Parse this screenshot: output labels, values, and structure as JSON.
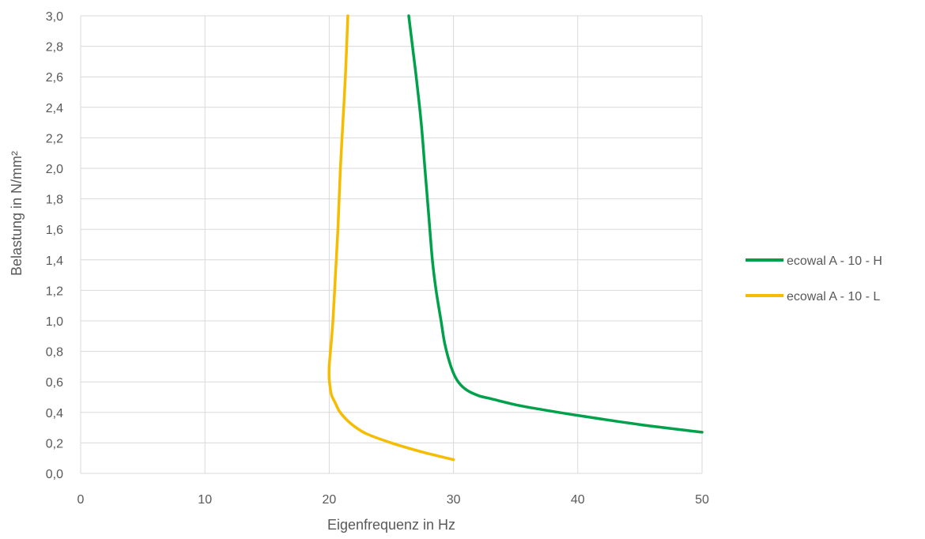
{
  "chart_data": {
    "type": "line",
    "title": "",
    "xlabel": "Eigenfrequenz in Hz",
    "ylabel": "Belastung in N/mm²",
    "xlim": [
      0,
      50
    ],
    "ylim": [
      0,
      3.0
    ],
    "x_ticks": [
      "0",
      "10",
      "20",
      "30",
      "40",
      "50"
    ],
    "y_ticks": [
      "0,0",
      "0,2",
      "0,4",
      "0,6",
      "0,8",
      "1,0",
      "1,2",
      "1,4",
      "1,6",
      "1,8",
      "2,0",
      "2,2",
      "2,4",
      "2,6",
      "2,8",
      "3,0"
    ],
    "grid": true,
    "legend_position": "right",
    "series": [
      {
        "name": "ecowal A - 10 - H",
        "color": "#00A14B",
        "x": [
          50.0,
          45.0,
          40.0,
          37.0,
          35.0,
          33.0,
          32.0,
          31.0,
          30.3,
          29.8,
          29.3,
          29.0,
          28.6,
          28.3,
          28.0,
          27.7,
          27.4,
          27.0,
          26.7,
          26.4
        ],
        "y": [
          0.27,
          0.32,
          0.38,
          0.42,
          0.45,
          0.49,
          0.51,
          0.55,
          0.61,
          0.7,
          0.85,
          1.0,
          1.2,
          1.4,
          1.7,
          2.0,
          2.3,
          2.6,
          2.8,
          3.0
        ]
      },
      {
        "name": "ecowal A - 10 - L",
        "color": "#F5BC00",
        "x": [
          30.0,
          27.5,
          25.0,
          23.0,
          22.0,
          21.3,
          20.8,
          20.5,
          20.2,
          20.1,
          20.0,
          20.0,
          20.1,
          20.3,
          20.5,
          20.7,
          20.9,
          21.1,
          21.3,
          21.5
        ],
        "y": [
          0.09,
          0.14,
          0.2,
          0.26,
          0.31,
          0.36,
          0.41,
          0.46,
          0.51,
          0.55,
          0.62,
          0.7,
          0.8,
          1.0,
          1.3,
          1.6,
          2.0,
          2.3,
          2.6,
          3.0
        ]
      }
    ]
  }
}
